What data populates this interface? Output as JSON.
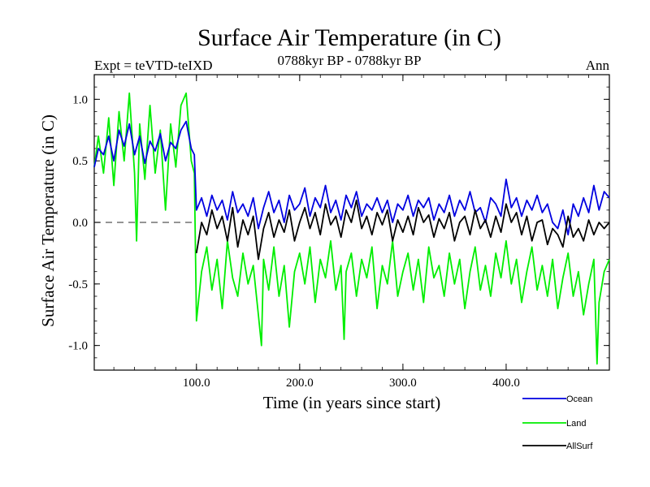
{
  "chart_data": {
    "type": "line",
    "title": "Surface Air Temperature (in C)",
    "subtitle": "0788kyr BP - 0788kyr BP",
    "expt_label": "Expt = teVTD-teIXD",
    "period_label": "Ann",
    "xlabel": "Time (in years since start)",
    "ylabel": "Surface Air Temperature (in C)",
    "xlim": [
      1,
      500
    ],
    "ylim": [
      -1.2,
      1.2
    ],
    "x_ticks": [
      {
        "value": 100,
        "label": "100.0"
      },
      {
        "value": 200,
        "label": "200.0"
      },
      {
        "value": 300,
        "label": "300.0"
      },
      {
        "value": 400,
        "label": "400.0"
      }
    ],
    "y_ticks": [
      {
        "value": 1.0,
        "label": "1.0"
      },
      {
        "value": 0.5,
        "label": "0.5"
      },
      {
        "value": 0.0,
        "label": "0.0"
      },
      {
        "value": -0.5,
        "label": "-0.5"
      },
      {
        "value": -1.0,
        "label": "-1.0"
      }
    ],
    "zero_line": {
      "value": 0.0,
      "x_end": 100,
      "style": "dashed"
    },
    "series": [
      {
        "name": "Ocean",
        "color": "#0000e0",
        "x": [
          1,
          5,
          10,
          15,
          20,
          25,
          30,
          35,
          40,
          45,
          50,
          55,
          60,
          65,
          70,
          75,
          80,
          85,
          90,
          95,
          98,
          100,
          105,
          110,
          115,
          120,
          125,
          130,
          135,
          140,
          145,
          150,
          155,
          160,
          165,
          170,
          175,
          180,
          185,
          190,
          195,
          200,
          205,
          210,
          215,
          220,
          225,
          230,
          235,
          240,
          245,
          250,
          255,
          260,
          265,
          270,
          275,
          280,
          285,
          290,
          295,
          300,
          305,
          310,
          315,
          320,
          325,
          330,
          335,
          340,
          345,
          350,
          355,
          360,
          365,
          370,
          375,
          380,
          385,
          390,
          395,
          400,
          405,
          410,
          415,
          420,
          425,
          430,
          435,
          440,
          445,
          450,
          455,
          460,
          465,
          470,
          475,
          480,
          485,
          490,
          495,
          500
        ],
        "y": [
          0.45,
          0.6,
          0.55,
          0.7,
          0.5,
          0.75,
          0.62,
          0.8,
          0.55,
          0.7,
          0.48,
          0.66,
          0.58,
          0.72,
          0.5,
          0.65,
          0.6,
          0.75,
          0.82,
          0.6,
          0.55,
          0.1,
          0.2,
          0.05,
          0.22,
          0.1,
          0.18,
          0.02,
          0.25,
          0.08,
          0.15,
          0.05,
          0.2,
          -0.05,
          0.12,
          0.25,
          0.08,
          0.18,
          0.0,
          0.22,
          0.1,
          0.15,
          0.28,
          0.05,
          0.2,
          0.12,
          0.3,
          0.08,
          0.18,
          0.02,
          0.22,
          0.12,
          0.25,
          0.05,
          0.15,
          0.1,
          0.2,
          0.08,
          0.18,
          0.0,
          0.15,
          0.1,
          0.22,
          0.05,
          0.18,
          0.12,
          0.2,
          0.02,
          0.15,
          0.08,
          0.22,
          0.05,
          0.18,
          0.1,
          0.25,
          0.08,
          0.12,
          0.0,
          0.2,
          0.15,
          0.05,
          0.35,
          0.12,
          0.2,
          0.05,
          0.18,
          0.1,
          0.22,
          0.08,
          0.15,
          0.0,
          -0.05,
          0.1,
          -0.1,
          0.15,
          0.05,
          0.2,
          0.08,
          0.3,
          0.1,
          0.25,
          0.2
        ]
      },
      {
        "name": "Land",
        "color": "#00ee00",
        "x": [
          1,
          5,
          10,
          15,
          20,
          25,
          30,
          35,
          40,
          42,
          45,
          50,
          55,
          60,
          65,
          70,
          75,
          80,
          85,
          90,
          95,
          98,
          100,
          105,
          110,
          115,
          120,
          125,
          130,
          135,
          140,
          145,
          150,
          155,
          160,
          163,
          165,
          170,
          175,
          180,
          185,
          190,
          195,
          200,
          205,
          210,
          215,
          220,
          225,
          230,
          235,
          240,
          243,
          245,
          250,
          255,
          260,
          265,
          270,
          275,
          280,
          285,
          290,
          295,
          300,
          305,
          310,
          315,
          320,
          325,
          330,
          335,
          340,
          345,
          350,
          355,
          360,
          365,
          370,
          375,
          380,
          385,
          390,
          395,
          400,
          405,
          410,
          415,
          420,
          425,
          430,
          435,
          440,
          445,
          450,
          455,
          460,
          465,
          470,
          475,
          480,
          485,
          488,
          490,
          495,
          500
        ],
        "y": [
          0.45,
          0.7,
          0.4,
          0.85,
          0.3,
          0.9,
          0.5,
          1.05,
          0.4,
          -0.15,
          0.8,
          0.35,
          0.95,
          0.4,
          0.75,
          0.1,
          0.8,
          0.45,
          0.95,
          1.05,
          0.5,
          0.4,
          -0.8,
          -0.4,
          -0.2,
          -0.55,
          -0.3,
          -0.7,
          -0.15,
          -0.45,
          -0.6,
          -0.25,
          -0.5,
          -0.35,
          -0.75,
          -1.0,
          -0.3,
          -0.55,
          -0.2,
          -0.6,
          -0.35,
          -0.85,
          -0.4,
          -0.25,
          -0.5,
          -0.2,
          -0.65,
          -0.3,
          -0.45,
          -0.15,
          -0.55,
          -0.35,
          -0.95,
          -0.4,
          -0.25,
          -0.6,
          -0.3,
          -0.45,
          -0.2,
          -0.7,
          -0.35,
          -0.5,
          -0.15,
          -0.6,
          -0.4,
          -0.25,
          -0.55,
          -0.3,
          -0.65,
          -0.2,
          -0.45,
          -0.35,
          -0.6,
          -0.25,
          -0.5,
          -0.3,
          -0.7,
          -0.4,
          -0.2,
          -0.55,
          -0.35,
          -0.6,
          -0.25,
          -0.45,
          -0.15,
          -0.5,
          -0.3,
          -0.65,
          -0.4,
          -0.2,
          -0.55,
          -0.35,
          -0.6,
          -0.3,
          -0.7,
          -0.45,
          -0.25,
          -0.6,
          -0.4,
          -0.75,
          -0.5,
          -0.3,
          -1.15,
          -0.65,
          -0.4,
          -0.3
        ]
      },
      {
        "name": "AllSurf",
        "color": "#000000",
        "x": [
          100,
          105,
          110,
          115,
          120,
          125,
          130,
          135,
          140,
          145,
          150,
          155,
          160,
          165,
          170,
          175,
          180,
          185,
          190,
          195,
          200,
          205,
          210,
          215,
          220,
          225,
          230,
          235,
          240,
          245,
          250,
          255,
          260,
          265,
          270,
          275,
          280,
          285,
          290,
          295,
          300,
          305,
          310,
          315,
          320,
          325,
          330,
          335,
          340,
          345,
          350,
          355,
          360,
          365,
          370,
          375,
          380,
          385,
          390,
          395,
          400,
          405,
          410,
          415,
          420,
          425,
          430,
          435,
          440,
          445,
          450,
          455,
          460,
          465,
          470,
          475,
          480,
          485,
          490,
          495,
          500
        ],
        "y": [
          -0.25,
          0.0,
          -0.1,
          0.1,
          -0.05,
          0.05,
          -0.15,
          0.12,
          -0.2,
          0.02,
          -0.1,
          0.05,
          -0.3,
          -0.05,
          0.08,
          -0.12,
          0.02,
          -0.08,
          0.1,
          -0.15,
          0.0,
          0.12,
          -0.05,
          0.08,
          -0.1,
          0.15,
          -0.02,
          0.05,
          -0.12,
          0.1,
          0.0,
          0.18,
          -0.05,
          0.05,
          -0.1,
          0.08,
          -0.02,
          0.1,
          -0.15,
          0.02,
          -0.08,
          0.05,
          -0.1,
          0.12,
          0.0,
          0.06,
          -0.12,
          0.03,
          -0.05,
          0.08,
          -0.15,
          0.0,
          0.05,
          -0.1,
          0.1,
          -0.05,
          0.02,
          -0.12,
          0.05,
          -0.08,
          0.15,
          0.0,
          0.08,
          -0.1,
          0.05,
          -0.15,
          0.0,
          0.02,
          -0.18,
          -0.05,
          -0.1,
          -0.2,
          0.05,
          -0.12,
          -0.05,
          -0.15,
          0.02,
          -0.1,
          0.0,
          -0.05,
          0.0
        ]
      }
    ]
  }
}
